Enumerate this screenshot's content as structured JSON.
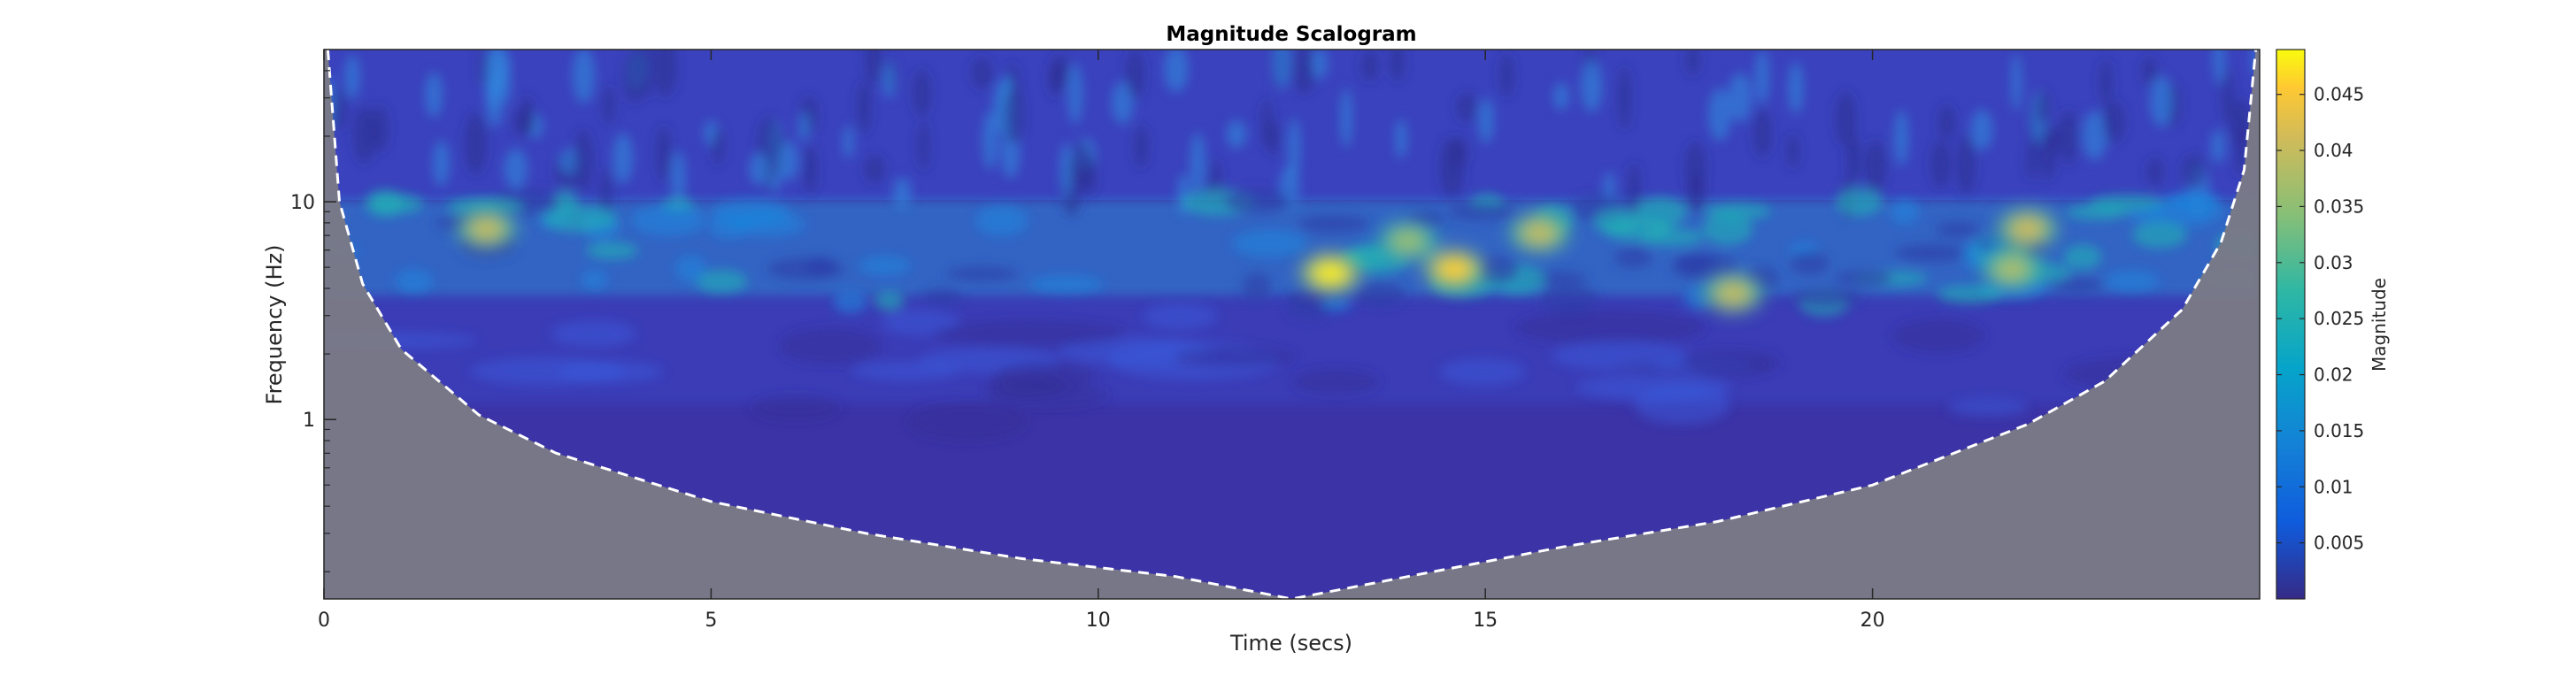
{
  "chart_data": {
    "type": "heatmap",
    "title": "Magnitude Scalogram",
    "xlabel": "Time (secs)",
    "ylabel": "Frequency (Hz)",
    "xlim": [
      0,
      25
    ],
    "ylim": [
      0.15,
      50
    ],
    "y_scale": "log",
    "x_ticks": [
      0,
      5,
      10,
      15,
      20
    ],
    "x_tick_labels": [
      "0",
      "5",
      "10",
      "15",
      "20"
    ],
    "y_ticks": [
      1,
      10
    ],
    "y_tick_labels": [
      "1",
      "10"
    ],
    "colorbar": {
      "label": "Magnitude",
      "colormap": "parula",
      "range": [
        0,
        0.049
      ],
      "ticks": [
        0.005,
        0.01,
        0.015,
        0.02,
        0.025,
        0.03,
        0.035,
        0.04,
        0.045
      ],
      "tick_labels": [
        "0.005",
        "0.01",
        "0.015",
        "0.02",
        "0.025",
        "0.03",
        "0.035",
        "0.04",
        "0.045"
      ]
    },
    "cone_of_influence": {
      "line_style": "dashed",
      "line_color": "#ffffff",
      "shade_color": "#7a7a86",
      "time": [
        0.05,
        0.2,
        0.5,
        1,
        2,
        3,
        5,
        7,
        9,
        11,
        12.5,
        14,
        16,
        18,
        20,
        22,
        23,
        24,
        24.5,
        24.8,
        24.95
      ],
      "frequency": [
        50,
        10,
        4.2,
        2.1,
        1.05,
        0.7,
        0.42,
        0.3,
        0.23,
        0.19,
        0.15,
        0.19,
        0.26,
        0.34,
        0.5,
        0.95,
        1.5,
        3.2,
        6.5,
        14,
        50
      ]
    },
    "peaks": [
      {
        "time": 2.1,
        "frequency": 7.5,
        "magnitude": 0.04
      },
      {
        "time": 13.0,
        "frequency": 4.7,
        "magnitude": 0.048
      },
      {
        "time": 14.6,
        "frequency": 4.9,
        "magnitude": 0.046
      },
      {
        "time": 14.0,
        "frequency": 6.6,
        "magnitude": 0.036
      },
      {
        "time": 15.7,
        "frequency": 7.2,
        "magnitude": 0.04
      },
      {
        "time": 18.2,
        "frequency": 3.8,
        "magnitude": 0.04
      },
      {
        "time": 21.8,
        "frequency": 4.9,
        "magnitude": 0.038
      },
      {
        "time": 22.0,
        "frequency": 7.5,
        "magnitude": 0.041
      }
    ]
  }
}
